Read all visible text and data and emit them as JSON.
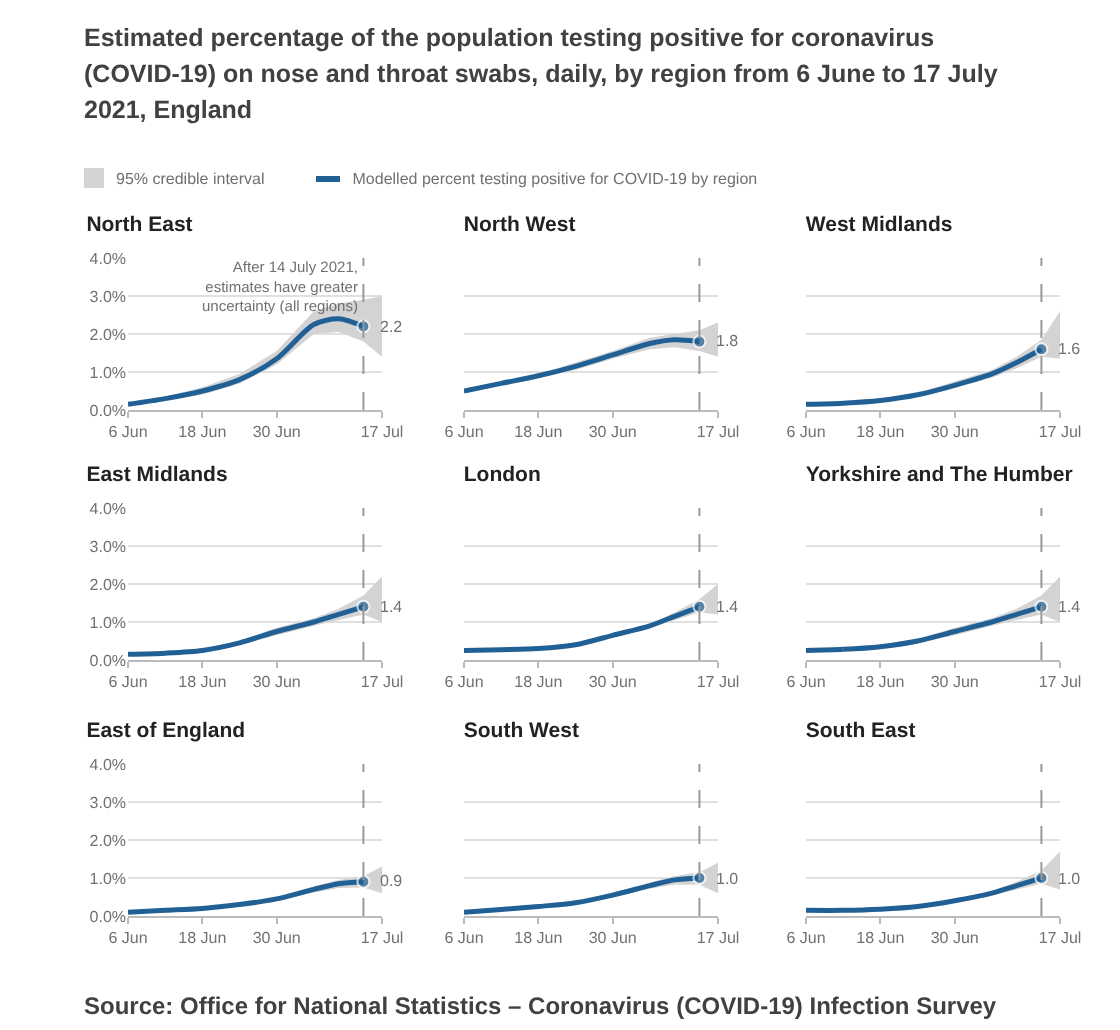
{
  "chart_data": [
    {
      "type": "line",
      "title": "Estimated percentage of the population testing positive for coronavirus (COVID-19) on nose and throat swabs, daily, by region from 6 June to 17 July 2021, England",
      "subtitle": "North East",
      "legend": "top",
      "annotations": [
        "95% credible interval"
      ],
      "grid": "y",
      "x": [
        "2021-06-06",
        "2021-06-12",
        "2021-06-18",
        "2021-06-24",
        "2021-06-30",
        "2021-07-06",
        "2021-07-10",
        "2021-07-14",
        "2021-07-17"
      ],
      "series": [
        {
          "name": "Modelled percent testing positive for COVID-19 by region",
          "color": "#206095",
          "values": [
            0.15,
            0.3,
            0.5,
            0.8,
            1.35,
            2.25,
            2.4,
            2.2,
            null
          ],
          "lower": [
            0.1,
            0.25,
            0.4,
            0.7,
            1.2,
            2.0,
            2.05,
            1.8,
            1.4
          ],
          "upper": [
            0.2,
            0.35,
            0.6,
            0.95,
            1.55,
            2.6,
            2.8,
            2.9,
            3.0
          ],
          "value_labels": [
            null,
            null,
            null,
            null,
            null,
            null,
            null,
            "2.2",
            null
          ]
        }
      ],
      "ref_lines": [
        {
          "axis": "x",
          "value": "2021-07-14",
          "label": "After 14 July 2021,\nestimates have greater\nuncertainty (all regions)",
          "line_style": "dashed"
        }
      ],
      "xlim": [
        "2021-06-06",
        "2021-07-17"
      ],
      "xticks": [
        {
          "value": "2021-06-06",
          "label": "6 Jun"
        },
        {
          "value": "2021-06-18",
          "label": "18 Jun"
        },
        {
          "value": "2021-06-30",
          "label": "30 Jun"
        },
        {
          "value": "2021-07-17",
          "label": "17 Jul"
        }
      ],
      "ylim": [
        0,
        4
      ],
      "yticks": [
        {
          "value": 0,
          "label": "0.0%"
        },
        {
          "value": 1,
          "label": "1.0%"
        },
        {
          "value": 2,
          "label": "2.0%"
        },
        {
          "value": 3,
          "label": "3.0%"
        },
        {
          "value": 4,
          "label": "4.0%"
        }
      ]
    },
    {
      "type": "line",
      "subtitle": "North West",
      "grid": "y",
      "tick_labels": "x",
      "x": [
        "2021-06-06",
        "2021-06-12",
        "2021-06-18",
        "2021-06-24",
        "2021-06-30",
        "2021-07-06",
        "2021-07-10",
        "2021-07-14",
        "2021-07-17"
      ],
      "series": [
        {
          "color": "#206095",
          "values": [
            0.5,
            0.7,
            0.9,
            1.15,
            1.45,
            1.75,
            1.85,
            1.8,
            null
          ],
          "lower": [
            0.45,
            0.65,
            0.85,
            1.05,
            1.35,
            1.6,
            1.65,
            1.55,
            1.4
          ],
          "upper": [
            0.55,
            0.75,
            0.95,
            1.25,
            1.55,
            1.9,
            2.0,
            2.1,
            2.3
          ],
          "value_labels": [
            null,
            null,
            null,
            null,
            null,
            null,
            null,
            "1.8",
            null
          ]
        }
      ],
      "ref_lines": [
        {
          "axis": "x",
          "value": "2021-07-14",
          "line_style": "dashed"
        }
      ],
      "xlim": [
        "2021-06-06",
        "2021-07-17"
      ],
      "xticks": [
        {
          "value": "2021-06-06",
          "label": "6 Jun"
        },
        {
          "value": "2021-06-18",
          "label": "18 Jun"
        },
        {
          "value": "2021-06-30",
          "label": "30 Jun"
        },
        {
          "value": "2021-07-17",
          "label": "17 Jul"
        }
      ],
      "ylim": [
        0,
        4
      ],
      "yticks": [
        {
          "value": 0,
          "label": null
        },
        {
          "value": 1,
          "label": null
        },
        {
          "value": 2,
          "label": null
        },
        {
          "value": 3,
          "label": null
        },
        {
          "value": 4,
          "label": null
        }
      ]
    },
    {
      "type": "line",
      "subtitle": "West Midlands",
      "grid": "y",
      "tick_labels": "x",
      "x": [
        "2021-06-06",
        "2021-06-12",
        "2021-06-18",
        "2021-06-24",
        "2021-06-30",
        "2021-07-06",
        "2021-07-10",
        "2021-07-14",
        "2021-07-17"
      ],
      "series": [
        {
          "color": "#206095",
          "values": [
            0.15,
            0.18,
            0.25,
            0.4,
            0.65,
            0.95,
            1.25,
            1.6,
            null
          ],
          "lower": [
            0.1,
            0.15,
            0.2,
            0.35,
            0.6,
            0.85,
            1.1,
            1.4,
            1.35
          ],
          "upper": [
            0.2,
            0.22,
            0.3,
            0.45,
            0.75,
            1.05,
            1.4,
            1.85,
            2.6
          ],
          "value_labels": [
            null,
            null,
            null,
            null,
            null,
            null,
            null,
            "1.6",
            null
          ]
        }
      ],
      "ref_lines": [
        {
          "axis": "x",
          "value": "2021-07-14",
          "line_style": "dashed"
        }
      ],
      "xlim": [
        "2021-06-06",
        "2021-07-17"
      ],
      "xticks": [
        {
          "value": "2021-06-06",
          "label": "6 Jun"
        },
        {
          "value": "2021-06-18",
          "label": "18 Jun"
        },
        {
          "value": "2021-06-30",
          "label": "30 Jun"
        },
        {
          "value": "2021-07-17",
          "label": "17 Jul"
        }
      ],
      "ylim": [
        0,
        4
      ],
      "yticks": [
        {
          "value": 0,
          "label": null
        },
        {
          "value": 1,
          "label": null
        },
        {
          "value": 2,
          "label": null
        },
        {
          "value": 3,
          "label": null
        },
        {
          "value": 4,
          "label": null
        }
      ]
    },
    {
      "type": "line",
      "subtitle": "East Midlands",
      "grid": "y",
      "x": [
        "2021-06-06",
        "2021-06-12",
        "2021-06-18",
        "2021-06-24",
        "2021-06-30",
        "2021-07-06",
        "2021-07-10",
        "2021-07-14",
        "2021-07-17"
      ],
      "series": [
        {
          "color": "#206095",
          "values": [
            0.15,
            0.18,
            0.25,
            0.45,
            0.75,
            1.0,
            1.2,
            1.4,
            null
          ],
          "lower": [
            0.1,
            0.15,
            0.2,
            0.4,
            0.65,
            0.9,
            1.05,
            1.2,
            1.0
          ],
          "upper": [
            0.2,
            0.22,
            0.3,
            0.5,
            0.85,
            1.1,
            1.35,
            1.7,
            2.2
          ],
          "value_labels": [
            null,
            null,
            null,
            null,
            null,
            null,
            null,
            "1.4",
            null
          ]
        }
      ],
      "ref_lines": [
        {
          "axis": "x",
          "value": "2021-07-14",
          "line_style": "dashed"
        }
      ],
      "xlim": [
        "2021-06-06",
        "2021-07-17"
      ],
      "xticks": [
        {
          "value": "2021-06-06",
          "label": "6 Jun"
        },
        {
          "value": "2021-06-18",
          "label": "18 Jun"
        },
        {
          "value": "2021-06-30",
          "label": "30 Jun"
        },
        {
          "value": "2021-07-17",
          "label": "17 Jul"
        }
      ],
      "ylim": [
        0,
        4
      ],
      "yticks": [
        {
          "value": 0,
          "label": "0.0%"
        },
        {
          "value": 1,
          "label": "1.0%"
        },
        {
          "value": 2,
          "label": "2.0%"
        },
        {
          "value": 3,
          "label": "3.0%"
        },
        {
          "value": 4,
          "label": "4.0%"
        }
      ]
    },
    {
      "type": "line",
      "subtitle": "London",
      "grid": "y",
      "tick_labels": "x",
      "x": [
        "2021-06-06",
        "2021-06-12",
        "2021-06-18",
        "2021-06-24",
        "2021-06-30",
        "2021-07-06",
        "2021-07-10",
        "2021-07-14",
        "2021-07-17"
      ],
      "series": [
        {
          "color": "#206095",
          "values": [
            0.25,
            0.27,
            0.3,
            0.4,
            0.65,
            0.9,
            1.15,
            1.4,
            null
          ],
          "lower": [
            0.2,
            0.23,
            0.27,
            0.35,
            0.6,
            0.85,
            1.05,
            1.25,
            1.2
          ],
          "upper": [
            0.3,
            0.31,
            0.35,
            0.45,
            0.7,
            0.95,
            1.25,
            1.6,
            2.0
          ],
          "value_labels": [
            null,
            null,
            null,
            null,
            null,
            null,
            null,
            "1.4",
            null
          ]
        }
      ],
      "ref_lines": [
        {
          "axis": "x",
          "value": "2021-07-14",
          "line_style": "dashed"
        }
      ],
      "xlim": [
        "2021-06-06",
        "2021-07-17"
      ],
      "xticks": [
        {
          "value": "2021-06-06",
          "label": "6 Jun"
        },
        {
          "value": "2021-06-18",
          "label": "18 Jun"
        },
        {
          "value": "2021-06-30",
          "label": "30 Jun"
        },
        {
          "value": "2021-07-17",
          "label": "17 Jul"
        }
      ],
      "ylim": [
        0,
        4
      ],
      "yticks": [
        {
          "value": 0,
          "label": null
        },
        {
          "value": 1,
          "label": null
        },
        {
          "value": 2,
          "label": null
        },
        {
          "value": 3,
          "label": null
        },
        {
          "value": 4,
          "label": null
        }
      ]
    },
    {
      "type": "line",
      "subtitle": "Yorkshire and The Humber",
      "grid": "y",
      "tick_labels": "x",
      "x": [
        "2021-06-06",
        "2021-06-12",
        "2021-06-18",
        "2021-06-24",
        "2021-06-30",
        "2021-07-06",
        "2021-07-10",
        "2021-07-14",
        "2021-07-17"
      ],
      "series": [
        {
          "color": "#206095",
          "values": [
            0.25,
            0.28,
            0.35,
            0.5,
            0.75,
            1.0,
            1.2,
            1.4,
            null
          ],
          "lower": [
            0.2,
            0.24,
            0.3,
            0.45,
            0.65,
            0.9,
            1.05,
            1.2,
            1.0
          ],
          "upper": [
            0.3,
            0.32,
            0.4,
            0.55,
            0.85,
            1.1,
            1.35,
            1.7,
            2.2
          ],
          "value_labels": [
            null,
            null,
            null,
            null,
            null,
            null,
            null,
            "1.4",
            null
          ]
        }
      ],
      "ref_lines": [
        {
          "axis": "x",
          "value": "2021-07-14",
          "line_style": "dashed"
        }
      ],
      "xlim": [
        "2021-06-06",
        "2021-07-17"
      ],
      "xticks": [
        {
          "value": "2021-06-06",
          "label": "6 Jun"
        },
        {
          "value": "2021-06-18",
          "label": "18 Jun"
        },
        {
          "value": "2021-06-30",
          "label": "30 Jun"
        },
        {
          "value": "2021-07-17",
          "label": "17 Jul"
        }
      ],
      "ylim": [
        0,
        4
      ],
      "yticks": [
        {
          "value": 0,
          "label": null
        },
        {
          "value": 1,
          "label": null
        },
        {
          "value": 2,
          "label": null
        },
        {
          "value": 3,
          "label": null
        },
        {
          "value": 4,
          "label": null
        }
      ]
    },
    {
      "type": "line",
      "subtitle": "East of England",
      "grid": "y",
      "x": [
        "2021-06-06",
        "2021-06-12",
        "2021-06-18",
        "2021-06-24",
        "2021-06-30",
        "2021-07-06",
        "2021-07-10",
        "2021-07-14",
        "2021-07-17"
      ],
      "series": [
        {
          "color": "#206095",
          "values": [
            0.1,
            0.15,
            0.2,
            0.3,
            0.45,
            0.7,
            0.85,
            0.9,
            null
          ],
          "lower": [
            0.07,
            0.12,
            0.17,
            0.26,
            0.4,
            0.62,
            0.74,
            0.75,
            0.6
          ],
          "upper": [
            0.13,
            0.18,
            0.23,
            0.34,
            0.5,
            0.78,
            0.95,
            1.05,
            1.3
          ],
          "value_labels": [
            null,
            null,
            null,
            null,
            null,
            null,
            null,
            "0.9",
            null
          ]
        }
      ],
      "ref_lines": [
        {
          "axis": "x",
          "value": "2021-07-14",
          "line_style": "dashed"
        }
      ],
      "xlim": [
        "2021-06-06",
        "2021-07-17"
      ],
      "xticks": [
        {
          "value": "2021-06-06",
          "label": "6 Jun"
        },
        {
          "value": "2021-06-18",
          "label": "18 Jun"
        },
        {
          "value": "2021-06-30",
          "label": "30 Jun"
        },
        {
          "value": "2021-07-17",
          "label": "17 Jul"
        }
      ],
      "ylim": [
        0,
        4
      ],
      "yticks": [
        {
          "value": 0,
          "label": "0.0%"
        },
        {
          "value": 1,
          "label": "1.0%"
        },
        {
          "value": 2,
          "label": "2.0%"
        },
        {
          "value": 3,
          "label": "3.0%"
        },
        {
          "value": 4,
          "label": "4.0%"
        }
      ]
    },
    {
      "type": "line",
      "subtitle": "South West",
      "grid": "y",
      "tick_labels": "x",
      "x": [
        "2021-06-06",
        "2021-06-12",
        "2021-06-18",
        "2021-06-24",
        "2021-06-30",
        "2021-07-06",
        "2021-07-10",
        "2021-07-14",
        "2021-07-17"
      ],
      "series": [
        {
          "color": "#206095",
          "values": [
            0.1,
            0.17,
            0.25,
            0.35,
            0.55,
            0.8,
            0.95,
            1.0,
            null
          ],
          "lower": [
            0.07,
            0.14,
            0.22,
            0.31,
            0.5,
            0.72,
            0.83,
            0.82,
            0.6
          ],
          "upper": [
            0.13,
            0.2,
            0.28,
            0.39,
            0.6,
            0.88,
            1.05,
            1.15,
            1.4
          ],
          "value_labels": [
            null,
            null,
            null,
            null,
            null,
            null,
            null,
            "1.0",
            null
          ]
        }
      ],
      "ref_lines": [
        {
          "axis": "x",
          "value": "2021-07-14",
          "line_style": "dashed"
        }
      ],
      "xlim": [
        "2021-06-06",
        "2021-07-17"
      ],
      "xticks": [
        {
          "value": "2021-06-06",
          "label": "6 Jun"
        },
        {
          "value": "2021-06-18",
          "label": "18 Jun"
        },
        {
          "value": "2021-06-30",
          "label": "30 Jun"
        },
        {
          "value": "2021-07-17",
          "label": "17 Jul"
        }
      ],
      "ylim": [
        0,
        4
      ],
      "yticks": [
        {
          "value": 0,
          "label": null
        },
        {
          "value": 1,
          "label": null
        },
        {
          "value": 2,
          "label": null
        },
        {
          "value": 3,
          "label": null
        },
        {
          "value": 4,
          "label": null
        }
      ]
    },
    {
      "type": "line",
      "subtitle": "South East",
      "grid": "y",
      "tick_labels": "x",
      "annotations": [
        "Source: Office for National Statistics – Coronavirus (COVID-19) Infection Survey"
      ],
      "x": [
        "2021-06-06",
        "2021-06-12",
        "2021-06-18",
        "2021-06-24",
        "2021-06-30",
        "2021-07-06",
        "2021-07-10",
        "2021-07-14",
        "2021-07-17"
      ],
      "series": [
        {
          "color": "#206095",
          "values": [
            0.15,
            0.15,
            0.18,
            0.25,
            0.4,
            0.6,
            0.8,
            1.0,
            null
          ],
          "lower": [
            0.12,
            0.12,
            0.15,
            0.22,
            0.36,
            0.54,
            0.7,
            0.85,
            0.7
          ],
          "upper": [
            0.18,
            0.18,
            0.21,
            0.28,
            0.44,
            0.66,
            0.9,
            1.2,
            1.7
          ],
          "value_labels": [
            null,
            null,
            null,
            null,
            null,
            null,
            null,
            "1.0",
            null
          ]
        }
      ],
      "ref_lines": [
        {
          "axis": "x",
          "value": "2021-07-14",
          "line_style": "dashed"
        }
      ],
      "xlim": [
        "2021-06-06",
        "2021-07-17"
      ],
      "xticks": [
        {
          "value": "2021-06-06",
          "label": "6 Jun"
        },
        {
          "value": "2021-06-18",
          "label": "18 Jun"
        },
        {
          "value": "2021-06-30",
          "label": "30 Jun"
        },
        {
          "value": "2021-07-17",
          "label": "17 Jul"
        }
      ],
      "ylim": [
        0,
        4
      ],
      "yticks": [
        {
          "value": 0,
          "label": null
        },
        {
          "value": 1,
          "label": null
        },
        {
          "value": 2,
          "label": null
        },
        {
          "value": 3,
          "label": null
        },
        {
          "value": 4,
          "label": null
        }
      ]
    }
  ]
}
